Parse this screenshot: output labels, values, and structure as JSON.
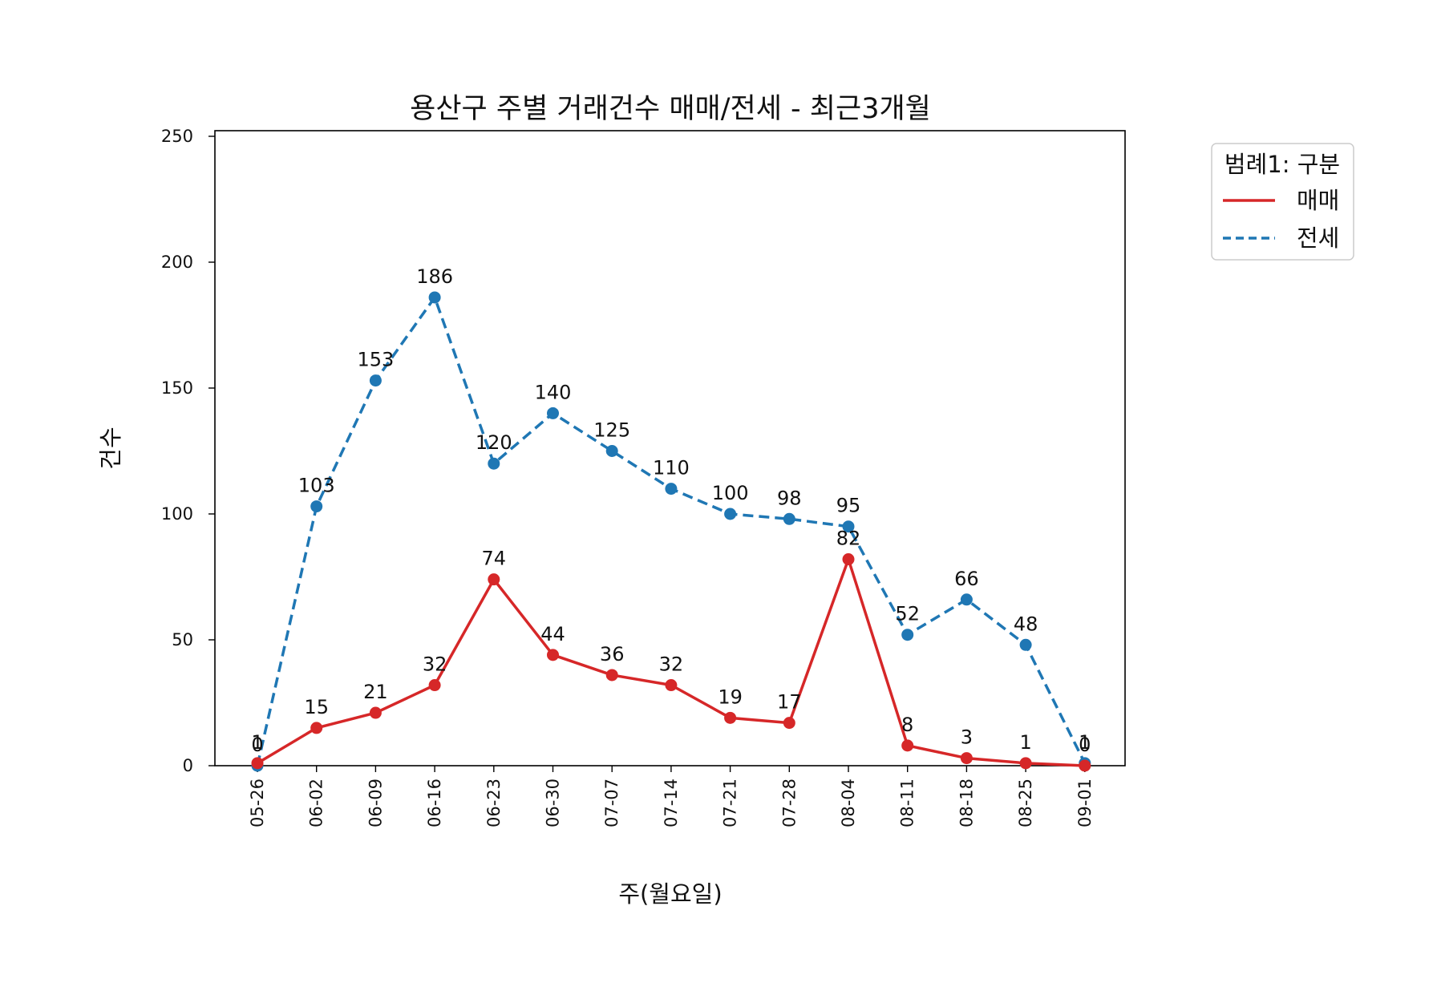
{
  "chart_data": {
    "type": "line",
    "title": "용산구 주별 거래건수 매매/전세 - 최근3개월",
    "xlabel": "주(월요일)",
    "ylabel": "건수",
    "ylim": [
      0,
      250
    ],
    "yticks": [
      0,
      50,
      100,
      150,
      200,
      250
    ],
    "categories": [
      "05-26",
      "06-02",
      "06-09",
      "06-16",
      "06-23",
      "06-30",
      "07-07",
      "07-14",
      "07-21",
      "07-28",
      "08-04",
      "08-11",
      "08-18",
      "08-25",
      "09-01"
    ],
    "series": [
      {
        "name": "매매",
        "color": "#d62728",
        "line_style": "solid",
        "values": [
          1,
          15,
          21,
          32,
          74,
          44,
          36,
          32,
          19,
          17,
          82,
          8,
          3,
          1,
          0
        ]
      },
      {
        "name": "전세",
        "color": "#1f77b4",
        "line_style": "dashed",
        "values": [
          0,
          103,
          153,
          186,
          120,
          140,
          125,
          110,
          100,
          98,
          95,
          52,
          66,
          48,
          1
        ]
      }
    ],
    "legend": {
      "title": "범례1: 구분",
      "position": "outside-top-right"
    },
    "grid": false
  }
}
